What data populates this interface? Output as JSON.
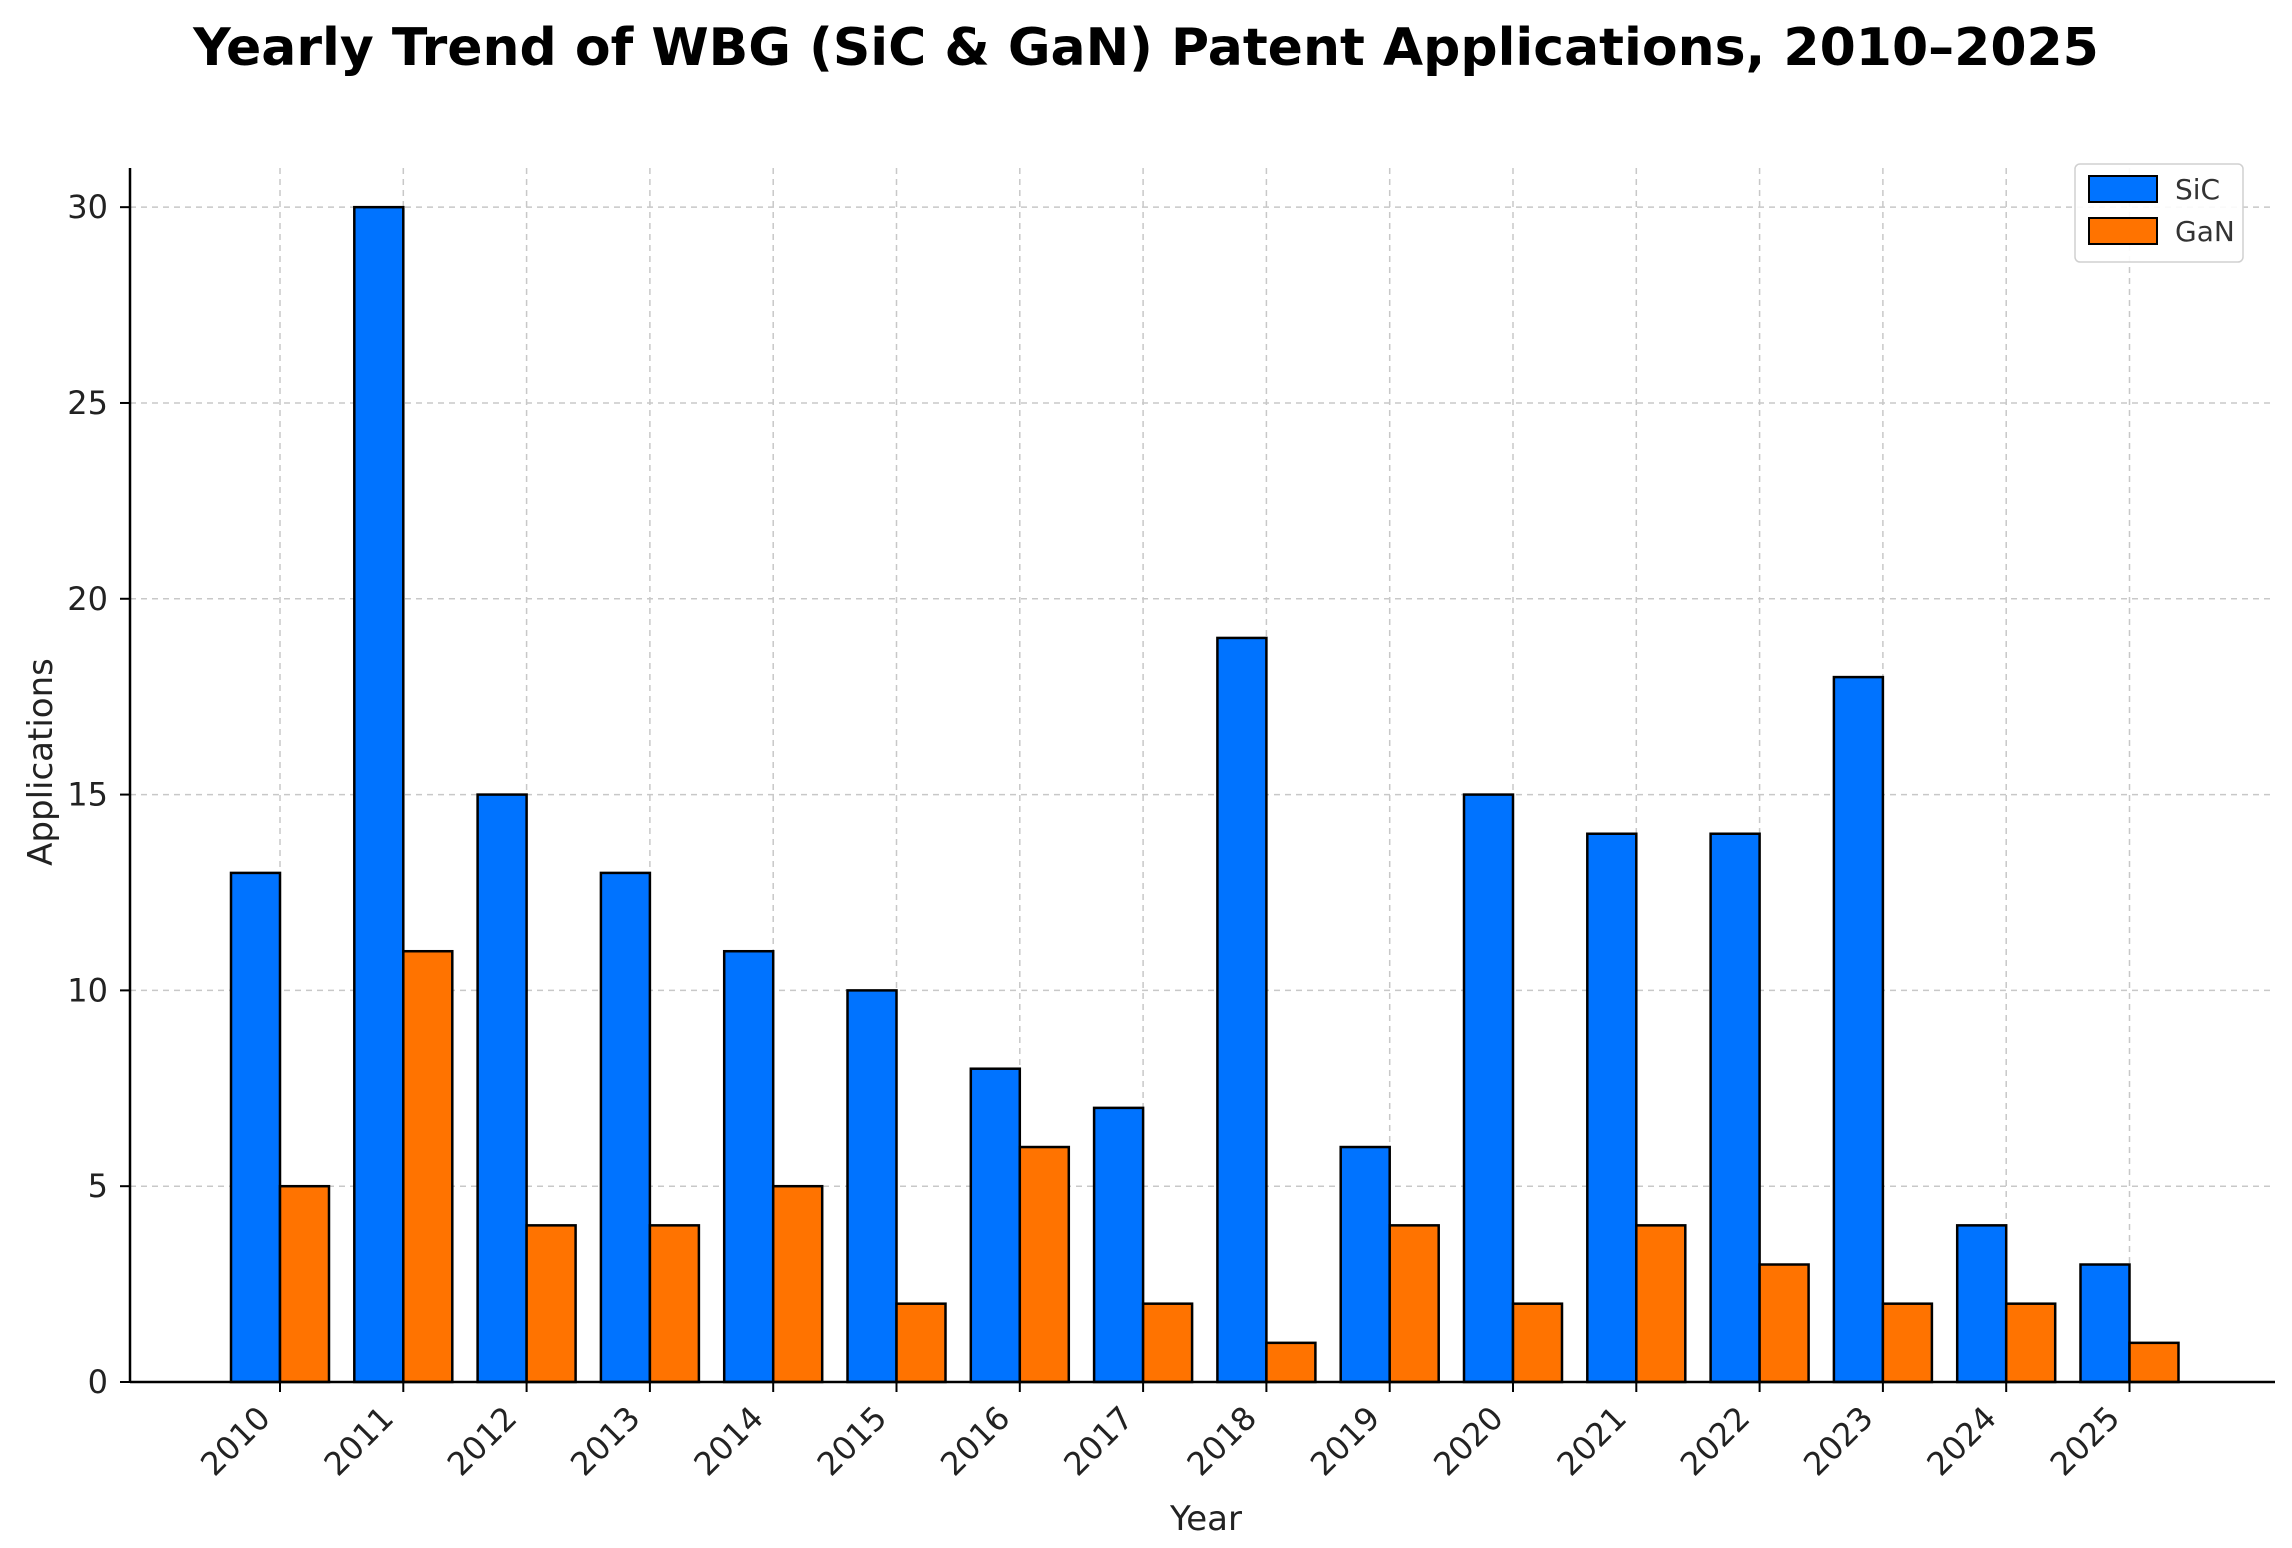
{
  "chart_data": {
    "type": "bar",
    "title": "Yearly Trend of WBG (SiC & GaN) Patent Applications, 2010–2025",
    "xlabel": "Year",
    "ylabel": "Applications",
    "ylim": [
      0,
      31
    ],
    "yticks": [
      0,
      5,
      10,
      15,
      20,
      25,
      30
    ],
    "grid": true,
    "legend_position": "top-right",
    "categories": [
      "2010",
      "2011",
      "2012",
      "2013",
      "2014",
      "2015",
      "2016",
      "2017",
      "2018",
      "2019",
      "2020",
      "2021",
      "2022",
      "2023",
      "2024",
      "2025"
    ],
    "series": [
      {
        "name": "SiC",
        "color": "#0073FF",
        "values": [
          13,
          30,
          15,
          13,
          11,
          10,
          8,
          7,
          19,
          6,
          15,
          14,
          14,
          18,
          4,
          3
        ]
      },
      {
        "name": "GaN",
        "color": "#FF7300",
        "values": [
          5,
          11,
          4,
          4,
          5,
          2,
          6,
          2,
          1,
          4,
          2,
          4,
          3,
          2,
          2,
          1
        ]
      }
    ]
  }
}
